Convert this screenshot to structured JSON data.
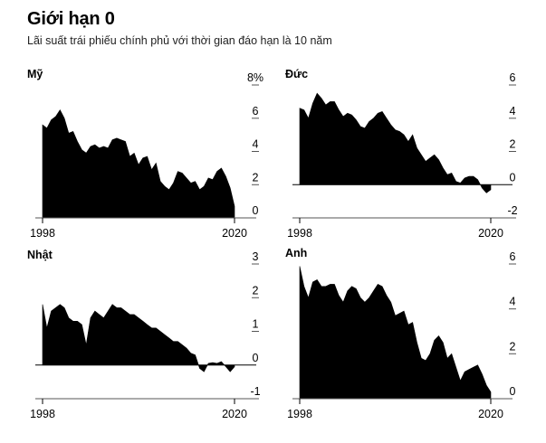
{
  "title": "Giới hạn 0",
  "subtitle": "Lãi suất trái phiếu chính phủ với thời gian đáo hạn là 10 năm",
  "chart_data": [
    {
      "type": "area",
      "title": "Mỹ",
      "x_tick_labels": [
        "1998",
        "2020"
      ],
      "xlim": [
        1998,
        2020
      ],
      "ylim": [
        0,
        8
      ],
      "y_ticks": [
        0,
        2,
        4,
        6,
        8
      ],
      "y_tick_labels": [
        "0",
        "2",
        "4",
        "6",
        "8%"
      ],
      "x": [
        1998,
        1998.5,
        1999,
        1999.5,
        2000,
        2000.5,
        2001,
        2001.5,
        2002,
        2002.5,
        2003,
        2003.5,
        2004,
        2004.5,
        2005,
        2005.5,
        2006,
        2006.5,
        2007,
        2007.5,
        2008,
        2008.5,
        2009,
        2009.5,
        2010,
        2010.5,
        2011,
        2011.5,
        2012,
        2012.5,
        2013,
        2013.5,
        2014,
        2014.5,
        2015,
        2015.5,
        2016,
        2016.5,
        2017,
        2017.5,
        2018,
        2018.5,
        2019,
        2019.5,
        2020
      ],
      "values": [
        5.6,
        5.4,
        5.9,
        6.1,
        6.5,
        6.0,
        5.1,
        5.2,
        4.6,
        4.1,
        3.9,
        4.3,
        4.4,
        4.2,
        4.3,
        4.2,
        4.7,
        4.8,
        4.7,
        4.6,
        3.7,
        3.9,
        3.2,
        3.6,
        3.7,
        2.9,
        3.3,
        2.2,
        1.9,
        1.7,
        2.1,
        2.8,
        2.7,
        2.4,
        2.1,
        2.2,
        1.7,
        1.9,
        2.4,
        2.3,
        2.8,
        3.0,
        2.5,
        1.8,
        0.7
      ]
    },
    {
      "type": "area",
      "title": "Đức",
      "x_tick_labels": [
        "1998",
        "2020"
      ],
      "xlim": [
        1998,
        2020
      ],
      "ylim": [
        -2,
        6
      ],
      "y_ticks": [
        -2,
        0,
        2,
        4,
        6
      ],
      "y_tick_labels": [
        "-2",
        "0",
        "2",
        "4",
        "6"
      ],
      "x": [
        1998,
        1998.5,
        1999,
        1999.5,
        2000,
        2000.5,
        2001,
        2001.5,
        2002,
        2002.5,
        2003,
        2003.5,
        2004,
        2004.5,
        2005,
        2005.5,
        2006,
        2006.5,
        2007,
        2007.5,
        2008,
        2008.5,
        2009,
        2009.5,
        2010,
        2010.5,
        2011,
        2011.5,
        2012,
        2012.5,
        2013,
        2013.5,
        2014,
        2014.5,
        2015,
        2015.5,
        2016,
        2016.5,
        2017,
        2017.5,
        2018,
        2018.5,
        2019,
        2019.5,
        2020
      ],
      "values": [
        4.6,
        4.5,
        4.0,
        4.9,
        5.5,
        5.2,
        4.8,
        5.0,
        5.0,
        4.5,
        4.1,
        4.3,
        4.2,
        3.9,
        3.5,
        3.4,
        3.8,
        4.0,
        4.3,
        4.4,
        4.0,
        3.6,
        3.3,
        3.2,
        3.0,
        2.6,
        3.0,
        2.2,
        1.8,
        1.4,
        1.6,
        1.8,
        1.5,
        1.0,
        0.6,
        0.7,
        0.2,
        0.1,
        0.4,
        0.5,
        0.5,
        0.3,
        -0.2,
        -0.5,
        -0.3
      ]
    },
    {
      "type": "area",
      "title": "Nhật",
      "x_tick_labels": [
        "1998",
        "2020"
      ],
      "xlim": [
        1998,
        2020
      ],
      "ylim": [
        -1,
        3
      ],
      "y_ticks": [
        -1,
        0,
        1,
        2,
        3
      ],
      "y_tick_labels": [
        "-1",
        "0",
        "1",
        "2",
        "3"
      ],
      "x": [
        1998,
        1998.5,
        1999,
        1999.5,
        2000,
        2000.5,
        2001,
        2001.5,
        2002,
        2002.5,
        2003,
        2003.5,
        2004,
        2004.5,
        2005,
        2005.5,
        2006,
        2006.5,
        2007,
        2007.5,
        2008,
        2008.5,
        2009,
        2009.5,
        2010,
        2010.5,
        2011,
        2011.5,
        2012,
        2012.5,
        2013,
        2013.5,
        2014,
        2014.5,
        2015,
        2015.5,
        2016,
        2016.5,
        2017,
        2017.5,
        2018,
        2018.5,
        2019,
        2019.5,
        2020
      ],
      "values": [
        1.8,
        1.1,
        1.6,
        1.7,
        1.8,
        1.7,
        1.4,
        1.3,
        1.3,
        1.2,
        0.6,
        1.4,
        1.6,
        1.5,
        1.4,
        1.6,
        1.8,
        1.7,
        1.7,
        1.6,
        1.5,
        1.5,
        1.4,
        1.3,
        1.2,
        1.1,
        1.1,
        1.0,
        0.9,
        0.8,
        0.7,
        0.7,
        0.6,
        0.5,
        0.35,
        0.3,
        -0.1,
        -0.2,
        0.05,
        0.07,
        0.05,
        0.1,
        -0.05,
        -0.2,
        -0.05
      ]
    },
    {
      "type": "area",
      "title": "Anh",
      "x_tick_labels": [
        "1998",
        "2020"
      ],
      "xlim": [
        1998,
        2020
      ],
      "ylim": [
        0,
        6
      ],
      "y_ticks": [
        0,
        2,
        4,
        6
      ],
      "y_tick_labels": [
        "0",
        "2",
        "4",
        "6"
      ],
      "x": [
        1998,
        1998.5,
        1999,
        1999.5,
        2000,
        2000.5,
        2001,
        2001.5,
        2002,
        2002.5,
        2003,
        2003.5,
        2004,
        2004.5,
        2005,
        2005.5,
        2006,
        2006.5,
        2007,
        2007.5,
        2008,
        2008.5,
        2009,
        2009.5,
        2010,
        2010.5,
        2011,
        2011.5,
        2012,
        2012.5,
        2013,
        2013.5,
        2014,
        2014.5,
        2015,
        2015.5,
        2016,
        2016.5,
        2017,
        2017.5,
        2018,
        2018.5,
        2019,
        2019.5,
        2020
      ],
      "values": [
        5.9,
        5.0,
        4.5,
        5.2,
        5.3,
        5.0,
        5.0,
        5.1,
        5.1,
        4.6,
        4.3,
        4.8,
        5.0,
        4.9,
        4.5,
        4.3,
        4.5,
        4.8,
        5.1,
        5.0,
        4.6,
        4.3,
        3.7,
        3.8,
        3.9,
        3.3,
        3.4,
        2.5,
        1.8,
        1.7,
        2.0,
        2.6,
        2.8,
        2.5,
        1.8,
        2.0,
        1.4,
        0.8,
        1.2,
        1.3,
        1.4,
        1.5,
        1.1,
        0.6,
        0.3
      ]
    }
  ]
}
